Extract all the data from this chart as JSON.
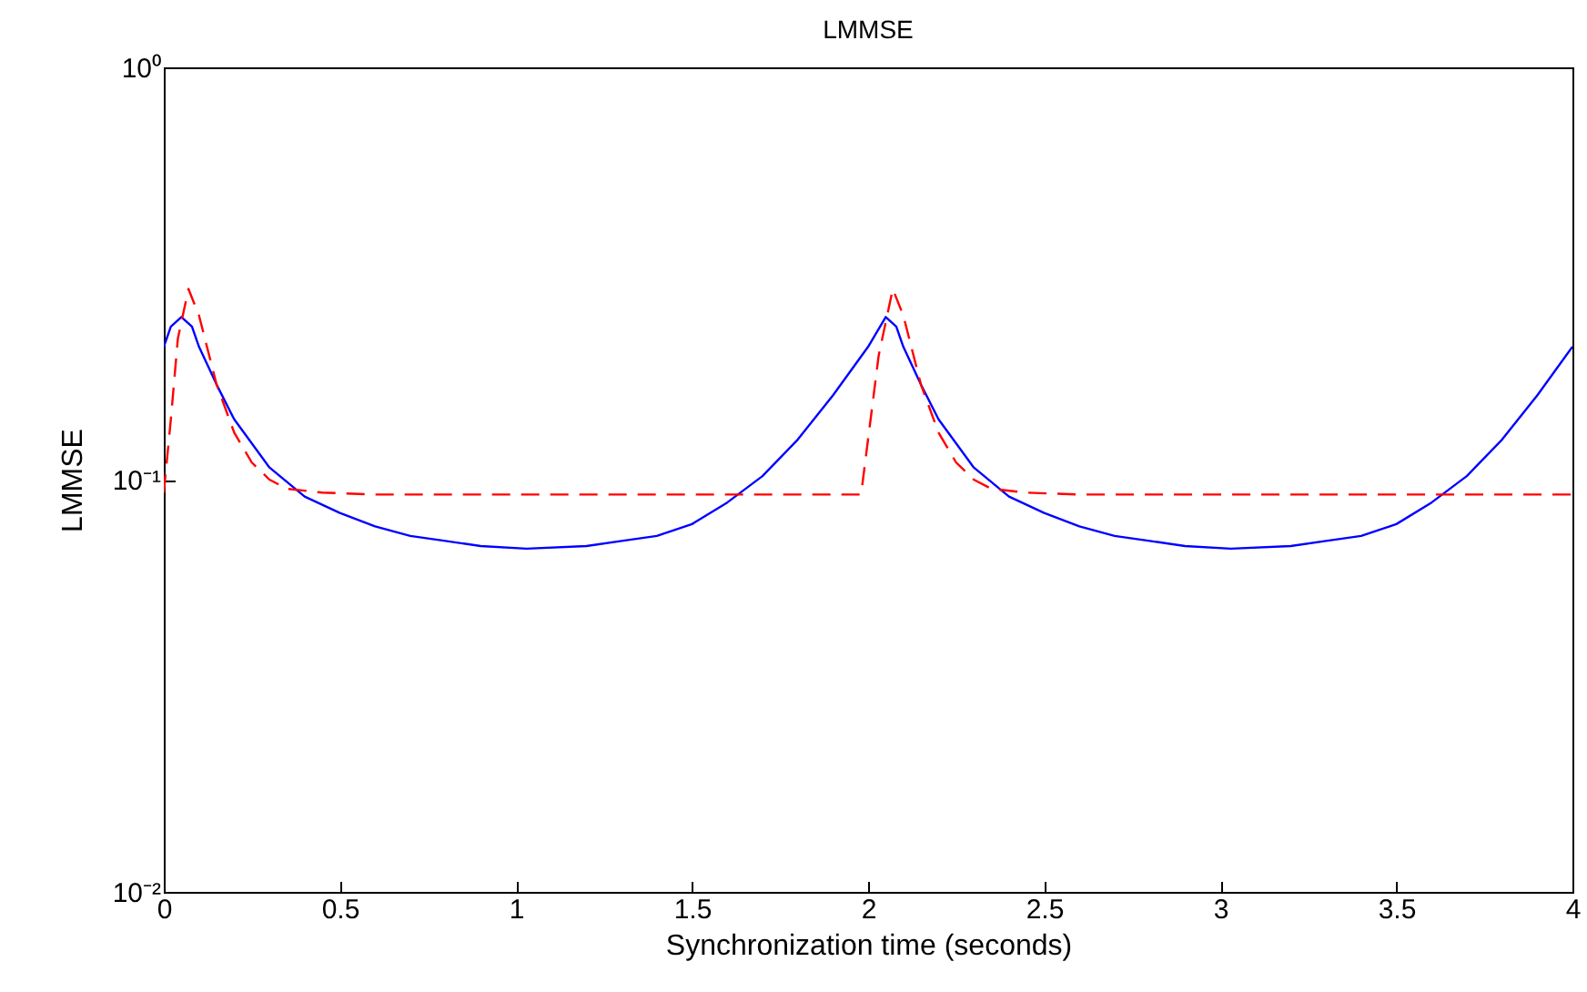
{
  "chart_data": {
    "type": "line",
    "title": "LMMSE",
    "xlabel": "Synchronization time (seconds)",
    "ylabel": "LMMSE",
    "log": "y",
    "xlim": [
      0,
      4
    ],
    "xticks": [
      0,
      0.5,
      1,
      1.5,
      2,
      2.5,
      3,
      3.5,
      4
    ],
    "ylim": [
      0.01,
      1
    ],
    "yticks": [
      {
        "value": 0.01,
        "label": "10⁻²"
      },
      {
        "value": 0.1,
        "label": "10⁻¹"
      },
      {
        "value": 1,
        "label": "10⁰"
      }
    ],
    "series": [
      {
        "color": "#0000ff",
        "line_style": "solid",
        "x": [
          0,
          0.02,
          0.05,
          0.08,
          0.1,
          0.15,
          0.2,
          0.3,
          0.4,
          0.5,
          0.6,
          0.7,
          0.8,
          0.9,
          1.03,
          1.2,
          1.3,
          1.4,
          1.5,
          1.6,
          1.7,
          1.8,
          1.9,
          2,
          2.05,
          2.08,
          2.1,
          2.15,
          2.2,
          2.3,
          2.4,
          2.5,
          2.6,
          2.7,
          2.8,
          2.9,
          3.03,
          3.2,
          3.3,
          3.4,
          3.5,
          3.6,
          3.7,
          3.8,
          3.9,
          4
        ],
        "values": [
          0.21,
          0.235,
          0.248,
          0.235,
          0.21,
          0.17,
          0.14,
          0.107,
          0.091,
          0.083,
          0.077,
          0.073,
          0.071,
          0.069,
          0.068,
          0.069,
          0.071,
          0.073,
          0.078,
          0.088,
          0.102,
          0.125,
          0.16,
          0.21,
          0.248,
          0.235,
          0.21,
          0.17,
          0.14,
          0.107,
          0.091,
          0.083,
          0.077,
          0.073,
          0.071,
          0.069,
          0.068,
          0.069,
          0.071,
          0.073,
          0.078,
          0.088,
          0.102,
          0.125,
          0.16,
          0.21
        ]
      },
      {
        "color": "#ff0000",
        "line_style": "dashed",
        "x": [
          0,
          0.02,
          0.04,
          0.07,
          0.1,
          0.15,
          0.2,
          0.25,
          0.3,
          0.35,
          0.45,
          0.6,
          1.98,
          2.03,
          2.07,
          2.1,
          2.15,
          2.2,
          2.25,
          2.3,
          2.35,
          2.45,
          2.6,
          4
        ],
        "values": [
          0.093,
          0.14,
          0.22,
          0.29,
          0.25,
          0.17,
          0.13,
          0.11,
          0.1,
          0.095,
          0.093,
          0.092,
          0.092,
          0.2,
          0.29,
          0.25,
          0.17,
          0.13,
          0.11,
          0.1,
          0.095,
          0.093,
          0.092,
          0.092
        ]
      }
    ]
  }
}
